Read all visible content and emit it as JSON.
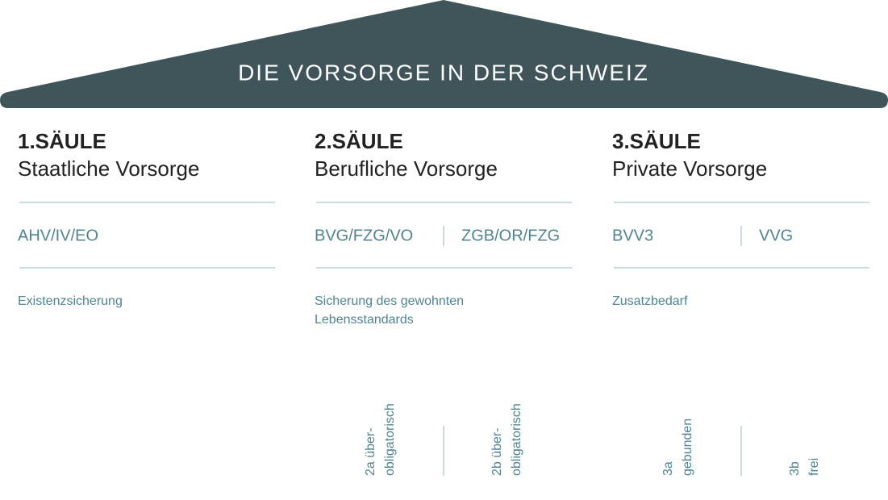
{
  "roof": {
    "title": "DIE VORSORGE IN DER SCHWEIZ"
  },
  "pillars": [
    {
      "heading": "1.SÄULE",
      "subtitle": "Staatliche Vorsorge",
      "laws": [
        "AHV/IV/EO"
      ],
      "description": [
        "Existenzsicherung"
      ],
      "parts": []
    },
    {
      "heading": "2.SÄULE",
      "subtitle": "Berufliche Vorsorge",
      "laws": [
        "BVG/FZG/VO",
        "ZGB/OR/FZG"
      ],
      "description": [
        "Sicherung des gewohnten",
        "Lebensstandards"
      ],
      "parts": [
        [
          "2a über-",
          "obligatorisch"
        ],
        [
          "2b über-",
          "obligatorisch"
        ]
      ]
    },
    {
      "heading": "3.SÄULE",
      "subtitle": "Private Vorsorge",
      "laws": [
        "BVV3",
        "VVG"
      ],
      "description": [
        "Zusatzbedarf"
      ],
      "parts": [
        [
          "3a",
          "gebunden"
        ],
        [
          "3b",
          "frei"
        ]
      ]
    }
  ]
}
